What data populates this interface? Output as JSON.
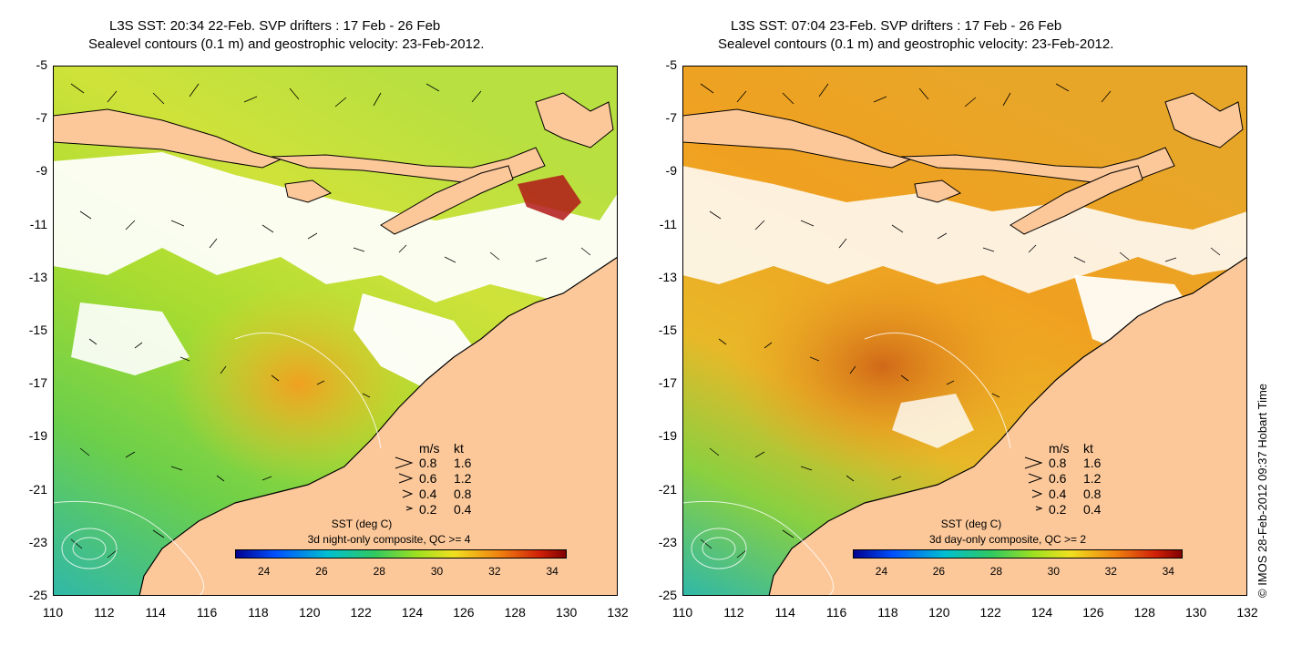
{
  "panels": [
    {
      "title_line1": "L3S SST: 20:34 22-Feb. SVP drifters : 17 Feb - 26 Feb",
      "title_line2": "Sealevel contours (0.1 m) and geostrophic velocity: 23-Feb-2012.",
      "colorbar_title": "SST (deg C)",
      "composite": "3d night-only composite, QC >= 4"
    },
    {
      "title_line1": "L3S SST: 07:04 23-Feb. SVP drifters : 17 Feb - 26 Feb",
      "title_line2": "Sealevel contours (0.1 m) and geostrophic velocity: 23-Feb-2012.",
      "colorbar_title": "SST (deg C)",
      "composite": "3d day-only composite, QC >= 2"
    }
  ],
  "axes": {
    "lon_ticks": [
      "110",
      "112",
      "114",
      "116",
      "118",
      "120",
      "122",
      "124",
      "126",
      "128",
      "130",
      "132"
    ],
    "lat_ticks": [
      "-5",
      "-7",
      "-9",
      "-11",
      "-13",
      "-15",
      "-17",
      "-19",
      "-21",
      "-23",
      "-25"
    ],
    "lon_range": [
      110,
      132
    ],
    "lat_range": [
      -25,
      -5
    ]
  },
  "velocity_legend": {
    "header": [
      "m/s",
      "kt"
    ],
    "rows": [
      {
        "ms": "0.8",
        "kt": "1.6"
      },
      {
        "ms": "0.6",
        "kt": "1.2"
      },
      {
        "ms": "0.4",
        "kt": "0.8"
      },
      {
        "ms": "0.2",
        "kt": "0.4"
      }
    ]
  },
  "colorbar": {
    "ticks": [
      "24",
      "26",
      "28",
      "30",
      "32",
      "34"
    ],
    "range": [
      23,
      34.5
    ]
  },
  "colors": {
    "land": "#fcc89a",
    "sst_cool": "#3cbfa0",
    "sst_mid": "#8fd44a",
    "sst_warm": "#f0a020",
    "sst_hot": "#a01010"
  },
  "copyright": "© IMOS 28-Feb-2012 09:37 Hobart Time"
}
